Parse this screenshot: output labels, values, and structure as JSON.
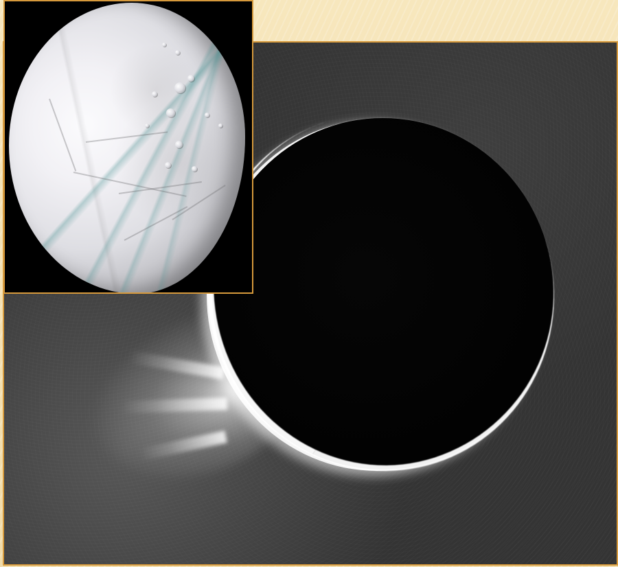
{
  "scene": {
    "main_photo": "enceladus-plumes-backlit-eclipse",
    "inset_photo": "enceladus-surface-close-up",
    "colors": {
      "slide_background": "#f4e3b8",
      "frame_border": "#d79a3c",
      "space_gray": "#343434",
      "plume_white": "#ffffff",
      "moon_shadow": "#000000",
      "stripe_teal": "#4a9393"
    }
  }
}
